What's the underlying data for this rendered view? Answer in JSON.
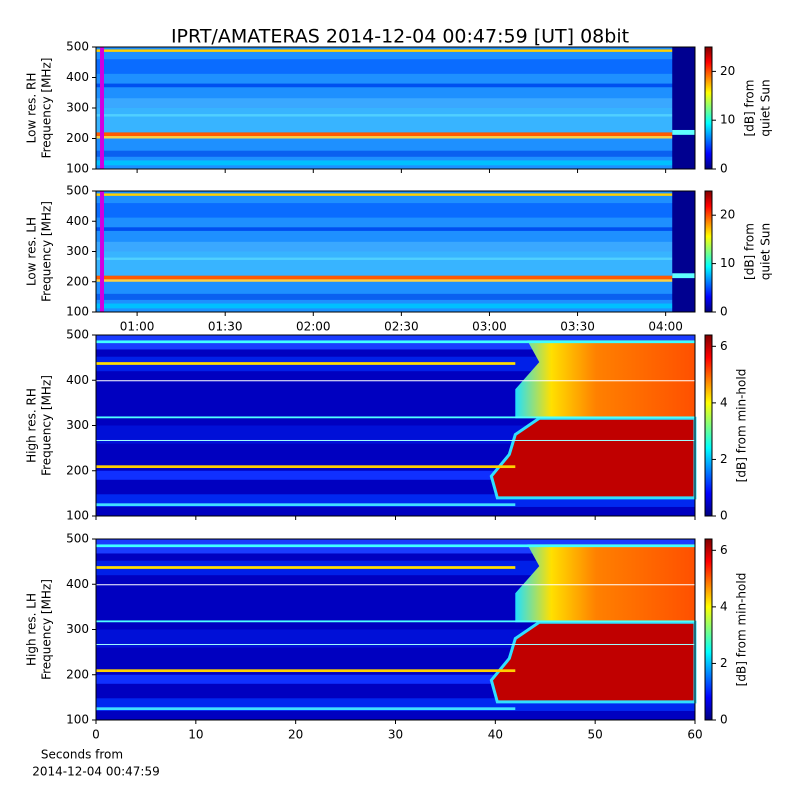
{
  "title": "IPRT/AMATERAS 2014-12-04 00:47:59 [UT]   08bit",
  "chart_data": [
    {
      "type": "heatmap",
      "ylabel": [
        "Low res. RH",
        "Frequency [MHz]"
      ],
      "xlim": [
        46,
        250
      ],
      "xticks": [
        60,
        90,
        120,
        150,
        180,
        210,
        240
      ],
      "ylim": [
        100,
        500
      ],
      "yticks": [
        100,
        200,
        300,
        400,
        500
      ],
      "colorbar_label": [
        "[dB] from",
        "quiet Sun"
      ],
      "clim": [
        0,
        25
      ],
      "cticks": [
        0,
        10,
        20
      ],
      "colormap": "jet",
      "style": "low"
    },
    {
      "type": "heatmap",
      "ylabel": [
        "Low res. LH",
        "Frequency [MHz]"
      ],
      "xlim": [
        46,
        250
      ],
      "xticks": [
        {
          "value": 60,
          "label": "01:00"
        },
        {
          "value": 90,
          "label": "01:30"
        },
        {
          "value": 120,
          "label": "02:00"
        },
        {
          "value": 150,
          "label": "02:30"
        },
        {
          "value": 180,
          "label": "03:00"
        },
        {
          "value": 210,
          "label": "03:30"
        },
        {
          "value": 240,
          "label": "04:00"
        }
      ],
      "ylim": [
        100,
        500
      ],
      "yticks": [
        100,
        200,
        300,
        400,
        500
      ],
      "colorbar_label": [
        "[dB] from",
        "quiet Sun"
      ],
      "clim": [
        0,
        25
      ],
      "cticks": [
        0,
        10,
        20
      ],
      "colormap": "jet",
      "style": "low"
    },
    {
      "type": "heatmap",
      "ylabel": [
        "High res. RH",
        "Frequency [MHz]"
      ],
      "xlim": [
        0,
        60
      ],
      "xticks": [
        0,
        10,
        20,
        30,
        40,
        50,
        60
      ],
      "ylim": [
        100,
        500
      ],
      "yticks": [
        100,
        200,
        300,
        400,
        500
      ],
      "colorbar_label": [
        "[dB] from min-hold"
      ],
      "clim": [
        0,
        6.4
      ],
      "cticks": [
        0,
        2,
        4,
        6
      ],
      "colormap": "jet",
      "style": "high"
    },
    {
      "type": "heatmap",
      "ylabel": [
        "High res. LH",
        "Frequency [MHz]"
      ],
      "xlim": [
        0,
        60
      ],
      "xticks": [
        0,
        10,
        20,
        30,
        40,
        50,
        60
      ],
      "xlabel": [
        "Seconds from",
        "2014-12-04 00:47:59"
      ],
      "ylim": [
        100,
        500
      ],
      "yticks": [
        100,
        200,
        300,
        400,
        500
      ],
      "colorbar_label": [
        "[dB] from min-hold"
      ],
      "clim": [
        0,
        6.4
      ],
      "cticks": [
        0,
        2,
        4,
        6
      ],
      "colormap": "jet",
      "style": "high"
    }
  ]
}
